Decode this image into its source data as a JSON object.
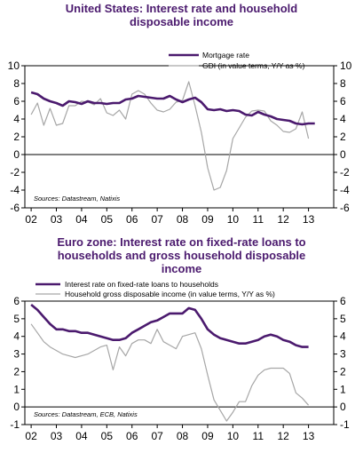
{
  "chart_data": [
    {
      "type": "line",
      "title_lines": [
        "United States: Interest rate and household",
        "disposable income"
      ],
      "x_labels": [
        "02",
        "03",
        "04",
        "05",
        "06",
        "07",
        "08",
        "09",
        "10",
        "11",
        "12",
        "13"
      ],
      "ylim": [
        -6,
        10
      ],
      "y_ticks": [
        -6,
        -4,
        -2,
        0,
        2,
        4,
        6,
        8,
        10
      ],
      "source": "Sources: Datastream, Natixis",
      "series": [
        {
          "name": "Mortgage rate",
          "color": "#4b1a6e",
          "x": [
            2002.0,
            2002.25,
            2002.5,
            2002.75,
            2003.0,
            2003.25,
            2003.5,
            2003.75,
            2004.0,
            2004.25,
            2004.5,
            2004.75,
            2005.0,
            2005.25,
            2005.5,
            2005.75,
            2006.0,
            2006.25,
            2006.5,
            2006.75,
            2007.0,
            2007.25,
            2007.5,
            2007.75,
            2008.0,
            2008.25,
            2008.5,
            2008.75,
            2009.0,
            2009.25,
            2009.5,
            2009.75,
            2010.0,
            2010.25,
            2010.5,
            2010.75,
            2011.0,
            2011.25,
            2011.5,
            2011.75,
            2012.0,
            2012.25,
            2012.5,
            2012.75,
            2013.0,
            2013.25
          ],
          "y": [
            7.0,
            6.8,
            6.3,
            6.0,
            5.8,
            5.5,
            6.0,
            5.9,
            5.7,
            6.0,
            5.8,
            5.8,
            5.7,
            5.8,
            5.8,
            6.2,
            6.3,
            6.6,
            6.5,
            6.4,
            6.3,
            6.3,
            6.6,
            6.2,
            5.9,
            6.2,
            6.4,
            5.9,
            5.1,
            5.0,
            5.1,
            4.9,
            5.0,
            4.9,
            4.5,
            4.4,
            4.8,
            4.5,
            4.3,
            4.0,
            3.9,
            3.8,
            3.5,
            3.4,
            3.5,
            3.5
          ]
        },
        {
          "name": "GDI (in value terms, Y/Y as %)",
          "color": "#a6a6a6",
          "x": [
            2002.0,
            2002.25,
            2002.5,
            2002.75,
            2003.0,
            2003.25,
            2003.5,
            2003.75,
            2004.0,
            2004.25,
            2004.5,
            2004.75,
            2005.0,
            2005.25,
            2005.5,
            2005.75,
            2006.0,
            2006.25,
            2006.5,
            2006.75,
            2007.0,
            2007.25,
            2007.5,
            2007.75,
            2008.0,
            2008.25,
            2008.5,
            2008.75,
            2009.0,
            2009.25,
            2009.5,
            2009.75,
            2010.0,
            2010.25,
            2010.5,
            2010.75,
            2011.0,
            2011.25,
            2011.5,
            2011.75,
            2012.0,
            2012.25,
            2012.5,
            2012.75,
            2013.0
          ],
          "y": [
            4.5,
            5.8,
            3.3,
            5.2,
            3.3,
            3.5,
            5.5,
            5.5,
            6.0,
            5.9,
            5.6,
            6.3,
            4.7,
            4.4,
            5.0,
            4.0,
            6.8,
            7.2,
            6.8,
            5.8,
            5.0,
            4.8,
            5.1,
            5.9,
            6.1,
            8.2,
            5.5,
            2.5,
            -1.5,
            -4.0,
            -3.7,
            -1.8,
            1.8,
            3.0,
            4.2,
            4.9,
            5.0,
            4.9,
            3.8,
            3.3,
            2.6,
            2.5,
            2.9,
            4.8,
            1.8
          ]
        }
      ]
    },
    {
      "type": "line",
      "title_lines": [
        "Euro zone: Interest rate on fixed-rate loans to",
        "households and gross household disposable",
        "income"
      ],
      "x_labels": [
        "02",
        "03",
        "04",
        "05",
        "06",
        "07",
        "08",
        "09",
        "10",
        "11",
        "12",
        "13"
      ],
      "ylim": [
        -1,
        6
      ],
      "y_ticks": [
        -1,
        0,
        1,
        2,
        3,
        4,
        5,
        6
      ],
      "source": "Sources: Datastream, ECB, Natixis",
      "series": [
        {
          "name": "Interest rate on fixed-rate loans to households",
          "color": "#4b1a6e",
          "x": [
            2002.0,
            2002.25,
            2002.5,
            2002.75,
            2003.0,
            2003.25,
            2003.5,
            2003.75,
            2004.0,
            2004.25,
            2004.5,
            2004.75,
            2005.0,
            2005.25,
            2005.5,
            2005.75,
            2006.0,
            2006.25,
            2006.5,
            2006.75,
            2007.0,
            2007.25,
            2007.5,
            2007.75,
            2008.0,
            2008.25,
            2008.5,
            2008.75,
            2009.0,
            2009.25,
            2009.5,
            2009.75,
            2010.0,
            2010.25,
            2010.5,
            2010.75,
            2011.0,
            2011.25,
            2011.5,
            2011.75,
            2012.0,
            2012.25,
            2012.5,
            2012.75,
            2013.0
          ],
          "y": [
            5.8,
            5.5,
            5.1,
            4.7,
            4.4,
            4.4,
            4.3,
            4.3,
            4.2,
            4.2,
            4.1,
            4.0,
            3.9,
            3.8,
            3.8,
            3.9,
            4.2,
            4.4,
            4.6,
            4.8,
            4.9,
            5.1,
            5.3,
            5.3,
            5.3,
            5.6,
            5.5,
            5.0,
            4.4,
            4.1,
            3.9,
            3.8,
            3.7,
            3.6,
            3.6,
            3.7,
            3.8,
            4.0,
            4.1,
            4.0,
            3.8,
            3.7,
            3.5,
            3.4,
            3.4
          ]
        },
        {
          "name": "Household gross disposable income (in value terms, Y/Y as %)",
          "color": "#a6a6a6",
          "x": [
            2002.0,
            2002.25,
            2002.5,
            2002.75,
            2003.0,
            2003.25,
            2003.5,
            2003.75,
            2004.0,
            2004.25,
            2004.5,
            2004.75,
            2005.0,
            2005.25,
            2005.5,
            2005.75,
            2006.0,
            2006.25,
            2006.5,
            2006.75,
            2007.0,
            2007.25,
            2007.5,
            2007.75,
            2008.0,
            2008.25,
            2008.5,
            2008.75,
            2009.0,
            2009.25,
            2009.5,
            2009.75,
            2010.0,
            2010.25,
            2010.5,
            2010.75,
            2011.0,
            2011.25,
            2011.5,
            2011.75,
            2012.0,
            2012.25,
            2012.5,
            2012.75,
            2013.0
          ],
          "y": [
            4.7,
            4.2,
            3.7,
            3.4,
            3.2,
            3.0,
            2.9,
            2.8,
            2.9,
            3.0,
            3.2,
            3.4,
            3.5,
            2.1,
            3.4,
            2.9,
            3.6,
            3.8,
            3.8,
            3.6,
            4.4,
            3.7,
            3.5,
            3.3,
            4.0,
            4.1,
            4.2,
            3.3,
            1.8,
            0.4,
            -0.2,
            -0.8,
            -0.3,
            0.3,
            0.3,
            1.2,
            1.8,
            2.1,
            2.2,
            2.2,
            2.2,
            1.9,
            0.8,
            0.5,
            0.1
          ]
        }
      ]
    }
  ]
}
